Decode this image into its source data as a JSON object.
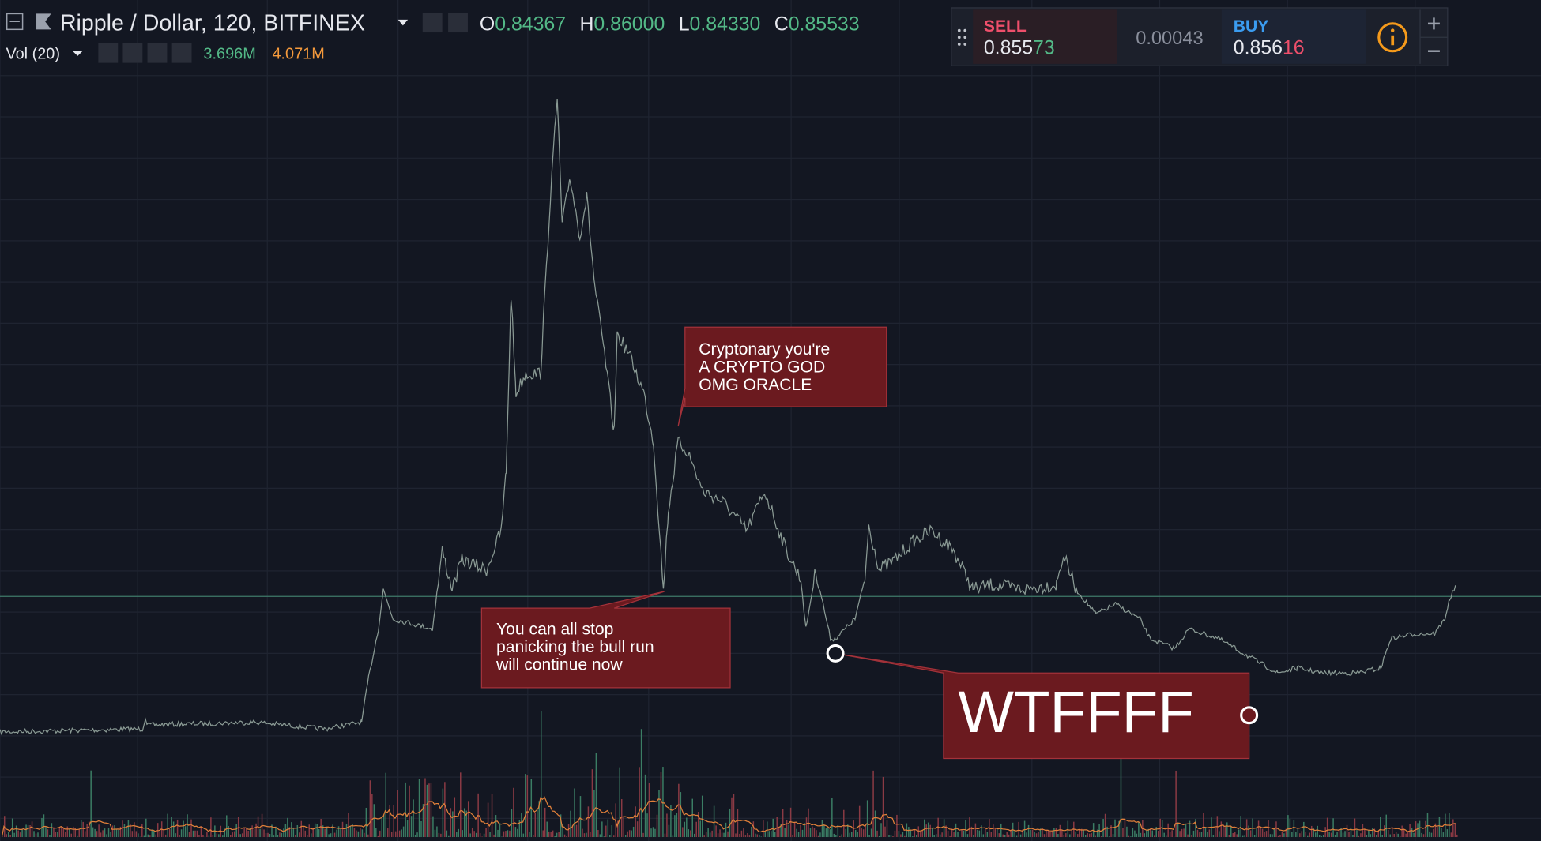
{
  "header": {
    "symbol": "Ripple / Dollar, 120, BITFINEX",
    "ohlc": [
      {
        "label": "O",
        "value": "0.84367"
      },
      {
        "label": "H",
        "value": "0.86000"
      },
      {
        "label": "L",
        "value": "0.84330"
      },
      {
        "label": "C",
        "value": "0.85533"
      }
    ]
  },
  "volume": {
    "label": "Vol (20)",
    "value": "3.696M",
    "ma": "4.071M"
  },
  "trade_panel": {
    "sell_label": "SELL",
    "sell_price": {
      "main": "0.855",
      "pips": "73"
    },
    "spread": "0.00043",
    "buy_label": "BUY",
    "buy_price": {
      "main": "0.856",
      "pips": "16"
    }
  },
  "annotations": [
    {
      "lines": [
        "Cryptonary you're",
        "A CRYPTO GOD",
        "OMG ORACLE"
      ]
    },
    {
      "lines": [
        "You can all stop",
        "panicking the bull run",
        "will continue now"
      ]
    },
    {
      "lines": [
        "WTFFFF"
      ]
    }
  ]
}
